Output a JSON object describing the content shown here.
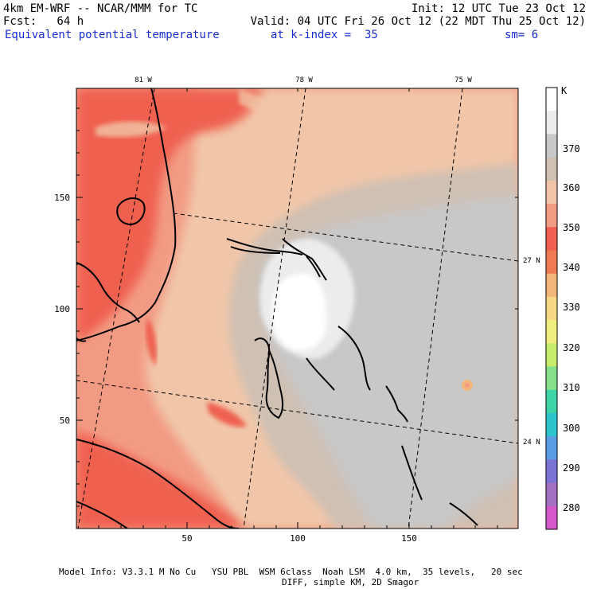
{
  "header": {
    "model": "4km EM-WRF -- NCAR/MMM for TC",
    "init": "Init: 12 UTC Tue 23 Oct 12",
    "fcst": "Fcst:   64 h",
    "valid": "Valid: 04 UTC Fri 26 Oct 12 (22 MDT Thu 25 Oct 12)",
    "field": "Equivalent potential temperature",
    "level": "at k-index =  35",
    "smoothing": "sm= 6"
  },
  "map": {
    "x_axis_ticks": [
      "50",
      "100",
      "150"
    ],
    "y_axis_ticks": [
      "50",
      "100",
      "150"
    ],
    "lon_labels": [
      "81 W",
      "78 W",
      "75 W"
    ],
    "lat_labels": [
      "27 N",
      "24 N"
    ]
  },
  "colorbar": {
    "unit": "K",
    "labels": [
      "370",
      "360",
      "350",
      "340",
      "330",
      "320",
      "310",
      "300",
      "290",
      "280"
    ],
    "colors": [
      "#ffffff",
      "#ececec",
      "#c8c8c8",
      "#cfc0b4",
      "#f1c6a8",
      "#f29b84",
      "#ef6050",
      "#f07a52",
      "#f3b67a",
      "#f7d884",
      "#f0ef7e",
      "#c6ec6a",
      "#84e08a",
      "#3ed4a8",
      "#2ec4cc",
      "#5a9ee6",
      "#7a74d6",
      "#a470c2",
      "#d458cc"
    ]
  },
  "footer": {
    "line1": "Model Info: V3.3.1 M No Cu   YSU PBL  WSM 6class  Noah LSM  4.0 km,  35 levels,   20 sec",
    "line2": "DIFF, simple KM, 2D Smagor"
  }
}
